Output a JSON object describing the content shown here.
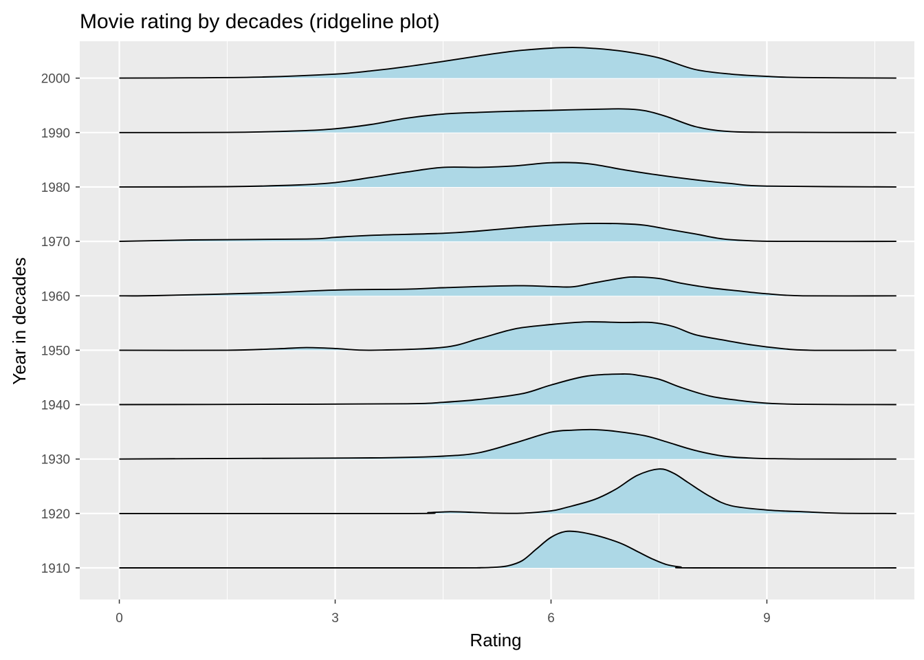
{
  "chart_data": {
    "type": "ridgeline",
    "title": "Movie rating by decades (ridgeline plot)",
    "xlabel": "Rating",
    "ylabel": "Year in decades",
    "xlim": [
      -0.55,
      11.05
    ],
    "x_ticks": [
      "0",
      "3",
      "6",
      "9"
    ],
    "x_tick_values": [
      0,
      3,
      6,
      9
    ],
    "categories": [
      "1910",
      "1920",
      "1930",
      "1940",
      "1950",
      "1960",
      "1970",
      "1980",
      "1990",
      "2000"
    ],
    "grid": true,
    "legend": "none",
    "colors": {
      "panel": "#ebebeb",
      "grid": "#ffffff",
      "fill": "#add8e6",
      "line": "#000000",
      "tick_text": "#4d4d4d"
    },
    "series": [
      {
        "category": "1910",
        "x": [
          0,
          4.5,
          5.0,
          5.2,
          5.4,
          5.6,
          5.8,
          6.0,
          6.2,
          6.4,
          6.6,
          6.8,
          7.0,
          7.2,
          7.4,
          7.6,
          7.8,
          8.0,
          10.8
        ],
        "density": [
          0,
          0,
          0.005,
          0.02,
          0.07,
          0.25,
          0.66,
          1.06,
          1.26,
          1.24,
          1.14,
          1.0,
          0.82,
          0.57,
          0.32,
          0.12,
          0.03,
          0,
          0
        ]
      },
      {
        "category": "1920",
        "x": [
          0,
          4.0,
          4.3,
          4.6,
          4.9,
          5.2,
          5.6,
          6.0,
          6.2,
          6.6,
          6.9,
          7.2,
          7.5,
          7.7,
          7.9,
          8.2,
          8.5,
          9.0,
          9.5,
          10.0,
          10.8
        ],
        "density": [
          0,
          0,
          0.03,
          0.06,
          0.04,
          0.01,
          0.01,
          0.09,
          0.2,
          0.48,
          0.84,
          1.32,
          1.54,
          1.4,
          1.08,
          0.6,
          0.27,
          0.12,
          0.06,
          0.01,
          0
        ]
      },
      {
        "category": "1930",
        "x": [
          0,
          1.5,
          3.5,
          4.5,
          5.0,
          5.5,
          6.0,
          6.3,
          6.6,
          6.9,
          7.3,
          7.6,
          8.0,
          8.4,
          8.8,
          9.2,
          9.6,
          10.8
        ],
        "density": [
          0,
          0.02,
          0.04,
          0.1,
          0.22,
          0.56,
          0.93,
          1.0,
          1.02,
          0.96,
          0.81,
          0.6,
          0.3,
          0.1,
          0.03,
          0.01,
          0,
          0
        ]
      },
      {
        "category": "1940",
        "x": [
          0,
          2.0,
          4.0,
          4.5,
          5.0,
          5.6,
          6.0,
          6.5,
          7.0,
          7.2,
          7.5,
          7.8,
          8.2,
          8.6,
          9.0,
          9.5,
          10.8
        ],
        "density": [
          0,
          0.01,
          0.03,
          0.08,
          0.18,
          0.38,
          0.68,
          0.99,
          1.06,
          1.02,
          0.88,
          0.6,
          0.3,
          0.15,
          0.05,
          0.01,
          0
        ]
      },
      {
        "category": "1950",
        "x": [
          0,
          1.5,
          2.2,
          2.6,
          3.0,
          3.5,
          4.5,
          5.0,
          5.5,
          6.0,
          6.5,
          7.0,
          7.4,
          7.7,
          8.0,
          8.4,
          8.8,
          9.2,
          9.6,
          10.8
        ],
        "density": [
          0,
          0,
          0.05,
          0.09,
          0.06,
          0,
          0.1,
          0.4,
          0.74,
          0.89,
          0.98,
          0.96,
          0.96,
          0.82,
          0.54,
          0.35,
          0.18,
          0.06,
          0,
          0
        ]
      },
      {
        "category": "1960",
        "x": [
          0,
          0.5,
          2.0,
          3.0,
          4.0,
          4.5,
          5.5,
          6.0,
          6.3,
          6.6,
          7.0,
          7.2,
          7.5,
          7.8,
          8.2,
          8.6,
          9.0,
          9.5,
          10.8
        ],
        "density": [
          0,
          0.005,
          0.1,
          0.2,
          0.23,
          0.28,
          0.35,
          0.32,
          0.31,
          0.45,
          0.62,
          0.65,
          0.6,
          0.44,
          0.28,
          0.17,
          0.07,
          0,
          0
        ]
      },
      {
        "category": "1970",
        "x": [
          0,
          1.0,
          2.6,
          3.0,
          3.5,
          4.5,
          5.0,
          5.5,
          6.0,
          6.5,
          7.0,
          7.3,
          7.6,
          8.0,
          8.4,
          8.9,
          9.5,
          10.8
        ],
        "density": [
          0,
          0.05,
          0.08,
          0.14,
          0.21,
          0.28,
          0.36,
          0.47,
          0.56,
          0.62,
          0.61,
          0.56,
          0.43,
          0.26,
          0.08,
          0.01,
          0,
          0
        ]
      },
      {
        "category": "1980",
        "x": [
          0,
          1.5,
          2.5,
          3.0,
          3.5,
          4.0,
          4.5,
          5.0,
          5.5,
          6.0,
          6.5,
          7.0,
          7.5,
          8.0,
          8.5,
          9.0,
          10.8
        ],
        "density": [
          0,
          0.01,
          0.07,
          0.15,
          0.33,
          0.52,
          0.68,
          0.68,
          0.73,
          0.84,
          0.81,
          0.6,
          0.41,
          0.25,
          0.12,
          0.03,
          0
        ]
      },
      {
        "category": "1990",
        "x": [
          0,
          1.5,
          2.5,
          3.0,
          3.5,
          4.0,
          4.5,
          5.0,
          5.5,
          6.0,
          6.5,
          7.0,
          7.3,
          7.6,
          8.0,
          8.4,
          9.0,
          10.8
        ],
        "density": [
          0,
          0.005,
          0.06,
          0.13,
          0.28,
          0.5,
          0.64,
          0.7,
          0.74,
          0.77,
          0.8,
          0.82,
          0.76,
          0.56,
          0.21,
          0.05,
          0.01,
          0
        ]
      },
      {
        "category": "2000",
        "x": [
          0,
          1.0,
          2.0,
          3.0,
          3.5,
          4.0,
          4.5,
          5.0,
          5.5,
          6.0,
          6.3,
          6.6,
          7.0,
          7.5,
          8.0,
          8.5,
          9.0,
          9.5,
          10.8
        ],
        "density": [
          0,
          0.01,
          0.04,
          0.14,
          0.25,
          0.4,
          0.58,
          0.77,
          0.94,
          1.04,
          1.06,
          1.03,
          0.93,
          0.7,
          0.3,
          0.14,
          0.06,
          0.02,
          0
        ]
      }
    ]
  }
}
